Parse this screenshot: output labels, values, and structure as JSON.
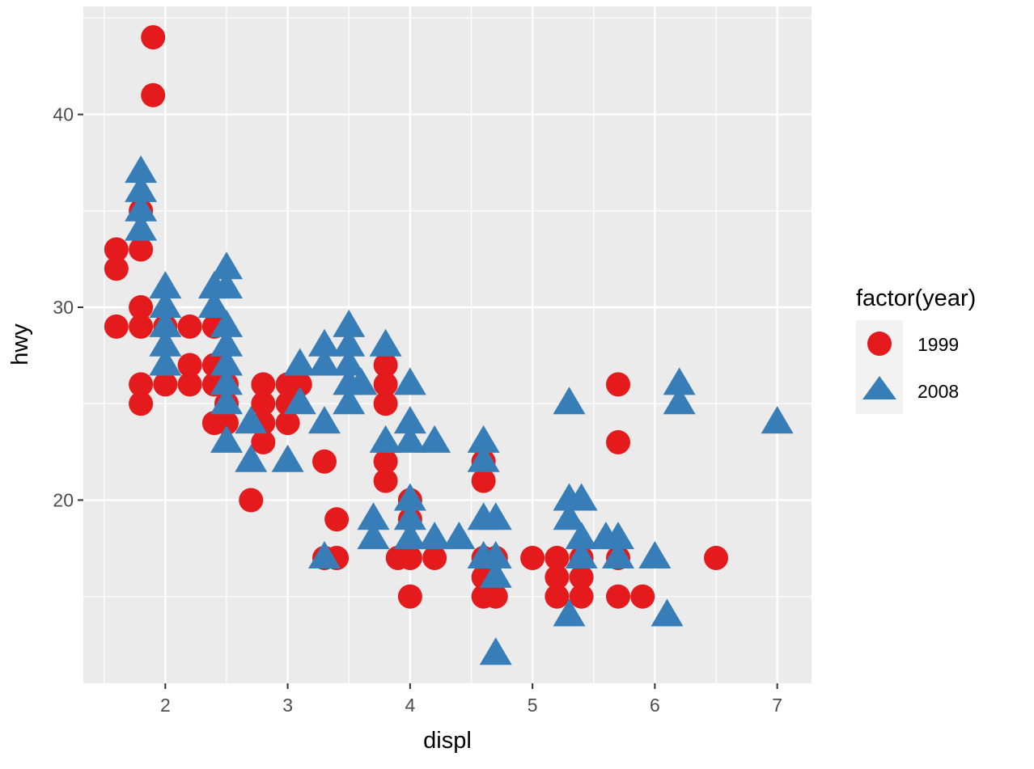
{
  "chart_data": {
    "type": "scatter",
    "xlabel": "displ",
    "ylabel": "hwy",
    "xlim": [
      1.33,
      7.28
    ],
    "ylim": [
      10.5,
      45.6
    ],
    "x_ticks": [
      2,
      3,
      4,
      5,
      6,
      7
    ],
    "y_ticks": [
      20,
      30,
      40
    ],
    "grid": true,
    "legend": {
      "title": "factor(year)",
      "placement": "right"
    },
    "series": [
      {
        "name": "1999",
        "shape": "circle",
        "color": "#E41A1C",
        "points": [
          [
            1.6,
            33
          ],
          [
            1.6,
            32
          ],
          [
            1.6,
            29
          ],
          [
            1.8,
            35
          ],
          [
            1.8,
            33
          ],
          [
            1.8,
            30
          ],
          [
            1.8,
            29
          ],
          [
            1.8,
            26
          ],
          [
            1.8,
            25
          ],
          [
            1.9,
            44
          ],
          [
            1.9,
            41
          ],
          [
            2.0,
            29
          ],
          [
            2.0,
            26
          ],
          [
            2.2,
            29
          ],
          [
            2.2,
            27
          ],
          [
            2.2,
            26
          ],
          [
            2.4,
            29
          ],
          [
            2.4,
            27
          ],
          [
            2.4,
            26
          ],
          [
            2.4,
            24
          ],
          [
            2.5,
            26
          ],
          [
            2.5,
            25
          ],
          [
            2.5,
            24
          ],
          [
            2.7,
            20
          ],
          [
            2.8,
            26
          ],
          [
            2.8,
            25
          ],
          [
            2.8,
            24
          ],
          [
            2.8,
            23
          ],
          [
            3.0,
            26
          ],
          [
            3.0,
            25
          ],
          [
            3.0,
            24
          ],
          [
            3.1,
            26
          ],
          [
            3.3,
            22
          ],
          [
            3.3,
            17
          ],
          [
            3.4,
            19
          ],
          [
            3.4,
            17
          ],
          [
            3.8,
            27
          ],
          [
            3.8,
            26
          ],
          [
            3.8,
            25
          ],
          [
            3.8,
            22
          ],
          [
            3.8,
            21
          ],
          [
            3.9,
            17
          ],
          [
            4.0,
            20
          ],
          [
            4.0,
            19
          ],
          [
            4.0,
            17
          ],
          [
            4.0,
            15
          ],
          [
            4.2,
            17
          ],
          [
            4.6,
            22
          ],
          [
            4.6,
            21
          ],
          [
            4.6,
            17
          ],
          [
            4.6,
            16
          ],
          [
            4.6,
            15
          ],
          [
            4.7,
            17
          ],
          [
            4.7,
            15
          ],
          [
            5.0,
            17
          ],
          [
            5.2,
            17
          ],
          [
            5.2,
            16
          ],
          [
            5.2,
            15
          ],
          [
            5.4,
            17
          ],
          [
            5.4,
            16
          ],
          [
            5.4,
            15
          ],
          [
            5.7,
            26
          ],
          [
            5.7,
            23
          ],
          [
            5.7,
            17
          ],
          [
            5.7,
            15
          ],
          [
            5.9,
            15
          ],
          [
            6.5,
            17
          ]
        ]
      },
      {
        "name": "2008",
        "shape": "triangle",
        "color": "#377EB8",
        "points": [
          [
            1.8,
            37
          ],
          [
            1.8,
            36
          ],
          [
            1.8,
            35
          ],
          [
            1.8,
            34
          ],
          [
            2.0,
            31
          ],
          [
            2.0,
            30
          ],
          [
            2.0,
            29
          ],
          [
            2.0,
            28
          ],
          [
            2.0,
            27
          ],
          [
            2.4,
            31
          ],
          [
            2.4,
            30
          ],
          [
            2.5,
            32
          ],
          [
            2.5,
            31
          ],
          [
            2.5,
            29
          ],
          [
            2.5,
            28
          ],
          [
            2.5,
            27
          ],
          [
            2.5,
            26
          ],
          [
            2.5,
            25
          ],
          [
            2.5,
            23
          ],
          [
            2.7,
            24
          ],
          [
            2.7,
            22
          ],
          [
            3.0,
            22
          ],
          [
            3.1,
            27
          ],
          [
            3.1,
            25
          ],
          [
            3.3,
            28
          ],
          [
            3.3,
            27
          ],
          [
            3.3,
            24
          ],
          [
            3.3,
            17
          ],
          [
            3.5,
            29
          ],
          [
            3.5,
            28
          ],
          [
            3.5,
            27
          ],
          [
            3.5,
            26
          ],
          [
            3.5,
            25
          ],
          [
            3.6,
            26
          ],
          [
            3.7,
            19
          ],
          [
            3.7,
            18
          ],
          [
            3.8,
            28
          ],
          [
            3.8,
            23
          ],
          [
            4.0,
            26
          ],
          [
            4.0,
            24
          ],
          [
            4.0,
            23
          ],
          [
            4.0,
            20
          ],
          [
            4.0,
            19
          ],
          [
            4.0,
            18
          ],
          [
            4.2,
            23
          ],
          [
            4.2,
            18
          ],
          [
            4.4,
            18
          ],
          [
            4.6,
            23
          ],
          [
            4.6,
            22
          ],
          [
            4.6,
            19
          ],
          [
            4.6,
            17
          ],
          [
            4.7,
            19
          ],
          [
            4.7,
            17
          ],
          [
            4.7,
            16
          ],
          [
            4.7,
            12
          ],
          [
            5.3,
            25
          ],
          [
            5.3,
            20
          ],
          [
            5.3,
            19
          ],
          [
            5.3,
            14
          ],
          [
            5.4,
            20
          ],
          [
            5.4,
            18
          ],
          [
            5.4,
            17
          ],
          [
            5.6,
            18
          ],
          [
            5.7,
            18
          ],
          [
            5.7,
            17
          ],
          [
            6.0,
            17
          ],
          [
            6.1,
            14
          ],
          [
            6.2,
            26
          ],
          [
            6.2,
            25
          ],
          [
            7.0,
            24
          ]
        ]
      }
    ]
  }
}
